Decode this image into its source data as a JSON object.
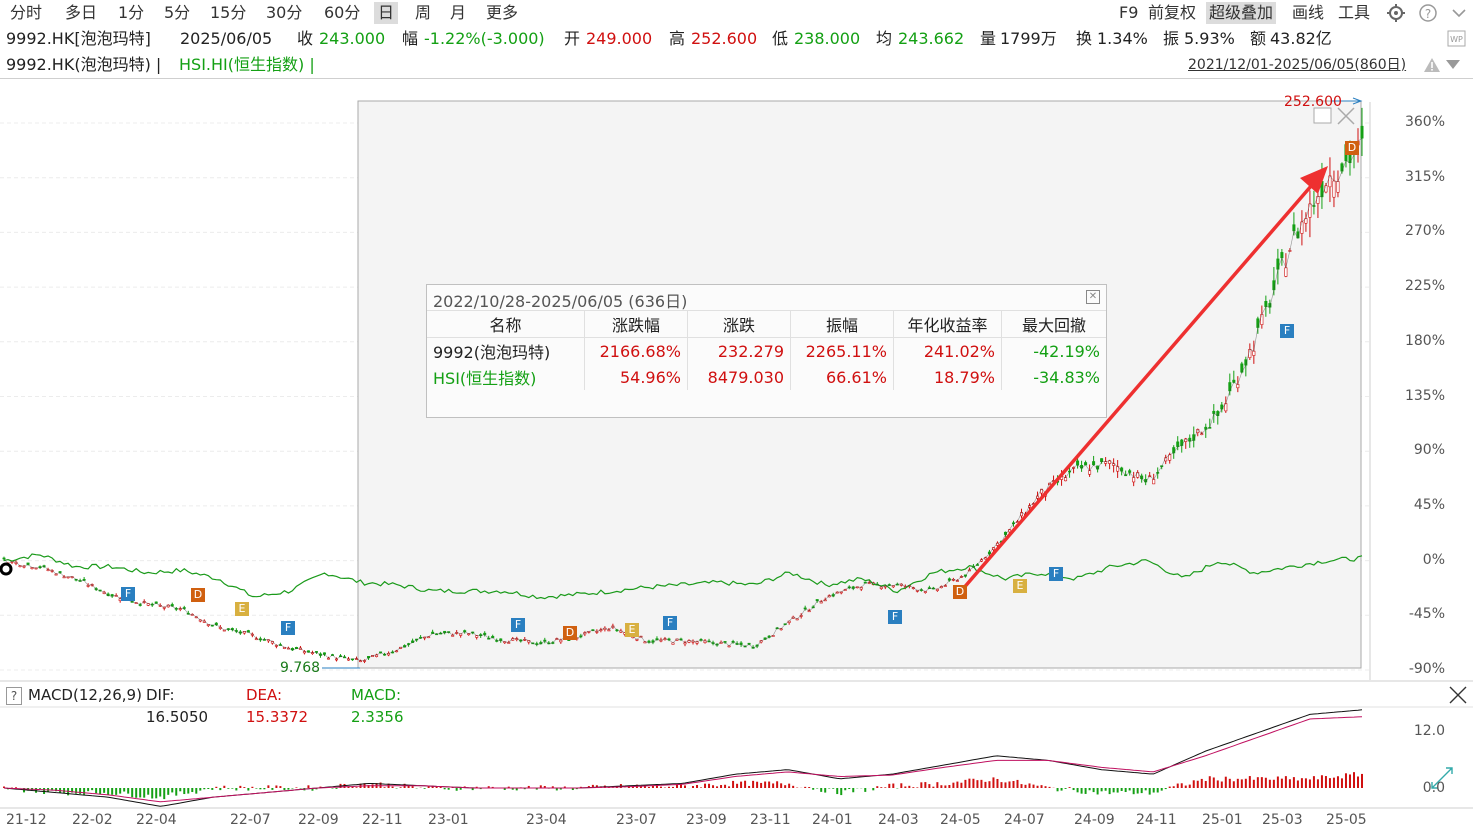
{
  "toolbar": {
    "periods": [
      "分时",
      "多日",
      "1分",
      "5分",
      "15分",
      "30分",
      "60分",
      "日",
      "周",
      "月",
      "更多"
    ],
    "active_period": "日",
    "tools": [
      "F9",
      "前复权",
      "超级叠加",
      "画线",
      "工具"
    ],
    "active_tool": "超级叠加"
  },
  "quote": {
    "symbol": "9992.HK[泡泡玛特]",
    "date": "2025/06/05",
    "close_label": "收",
    "close": "243.000",
    "change_label": "幅",
    "change": "-1.22%(-3.000)",
    "open_label": "开",
    "open": "249.000",
    "high_label": "高",
    "high": "252.600",
    "low_label": "低",
    "low": "238.000",
    "avg_label": "均",
    "avg": "243.662",
    "vol_label": "量",
    "vol": "1799万",
    "turnover_label": "换",
    "turnover": "1.34%",
    "amplitude_label": "振",
    "amplitude": "5.93%",
    "amount_label": "额",
    "amount": "43.82亿"
  },
  "overlay": {
    "main": "9992.HK(泡泡玛特) |",
    "index": "HSI.HI(恒生指数) |",
    "range": "2021/12/01-2025/06/05(860日)"
  },
  "annotations": {
    "high_price": "252.600",
    "low_price": "9.768"
  },
  "stats": {
    "title": "2022/10/28-2025/06/05 (636日)",
    "headers": [
      "名称",
      "涨跌幅",
      "涨跌",
      "振幅",
      "年化收益率",
      "最大回撤"
    ],
    "rows": [
      {
        "name": "9992(泡泡玛特)",
        "pct": "2166.68%",
        "chg": "232.279",
        "amp": "2265.11%",
        "annual": "241.02%",
        "dd": "-42.19%"
      },
      {
        "name": "HSI(恒生指数)",
        "pct": "54.96%",
        "chg": "8479.030",
        "amp": "66.61%",
        "annual": "18.79%",
        "dd": "-34.83%"
      }
    ]
  },
  "macd": {
    "help": "?",
    "label": "MACD(12,26,9)",
    "dif": "DIF: 16.5050",
    "dea": "DEA: 15.3372",
    "macd": "MACD: 2.3356",
    "y_ticks": [
      "12.0",
      "0.0"
    ]
  },
  "chart_data": {
    "type": "line",
    "title": "",
    "x_ticks": [
      "21-12",
      "22-02",
      "22-04",
      "22-07",
      "22-09",
      "22-11",
      "23-01",
      "23-04",
      "23-07",
      "23-09",
      "23-11",
      "24-01",
      "24-03",
      "24-05",
      "24-07",
      "24-09",
      "24-11",
      "25-01",
      "25-03",
      "25-05"
    ],
    "y_ticks": [
      "360%",
      "315%",
      "270%",
      "225%",
      "180%",
      "135%",
      "90%",
      "45%",
      "0%",
      "-45%",
      "-90%"
    ],
    "ylim": [
      -90,
      360
    ],
    "series": [
      {
        "name": "9992.HK(泡泡玛特)",
        "color": "#d01010",
        "values": [
          0,
          -5,
          -15,
          -28,
          -36,
          -40,
          -55,
          -62,
          -72,
          -78,
          -83,
          -73,
          -60,
          -60,
          -65,
          -68,
          -63,
          -55,
          -66,
          -66,
          -68,
          -70,
          -50,
          -30,
          -20,
          -20,
          -25,
          -10,
          20,
          55,
          75,
          80,
          65,
          95,
          120,
          180,
          260,
          315,
          340
        ]
      },
      {
        "name": "HSI.HI(恒生指数)",
        "color": "#1a9a1a",
        "values": [
          0,
          5,
          -5,
          -5,
          -10,
          -8,
          -15,
          -30,
          -25,
          -10,
          -18,
          -20,
          -25,
          -25,
          -25,
          -30,
          -28,
          -25,
          -22,
          -20,
          -18,
          -20,
          -10,
          -20,
          -15,
          -25,
          -10,
          -5,
          -15,
          -10,
          -15,
          -5,
          0,
          -15,
          0,
          -10,
          -5,
          0,
          2
        ]
      }
    ],
    "markers": [
      {
        "label": "F",
        "color": "#2a7fc0"
      },
      {
        "label": "D",
        "color": "#d06010"
      },
      {
        "label": "E",
        "color": "#d8b040"
      },
      {
        "label": "F",
        "color": "#2a7fc0"
      },
      {
        "label": "F",
        "color": "#2a7fc0"
      },
      {
        "label": "D",
        "color": "#d06010"
      },
      {
        "label": "E",
        "color": "#d8b040"
      },
      {
        "label": "F",
        "color": "#2a7fc0"
      },
      {
        "label": "F",
        "color": "#2a7fc0"
      },
      {
        "label": "D",
        "color": "#d06010"
      },
      {
        "label": "E",
        "color": "#d8b040"
      },
      {
        "label": "F",
        "color": "#2a7fc0"
      },
      {
        "label": "F",
        "color": "#2a7fc0"
      },
      {
        "label": "D",
        "color": "#d06010"
      }
    ]
  }
}
